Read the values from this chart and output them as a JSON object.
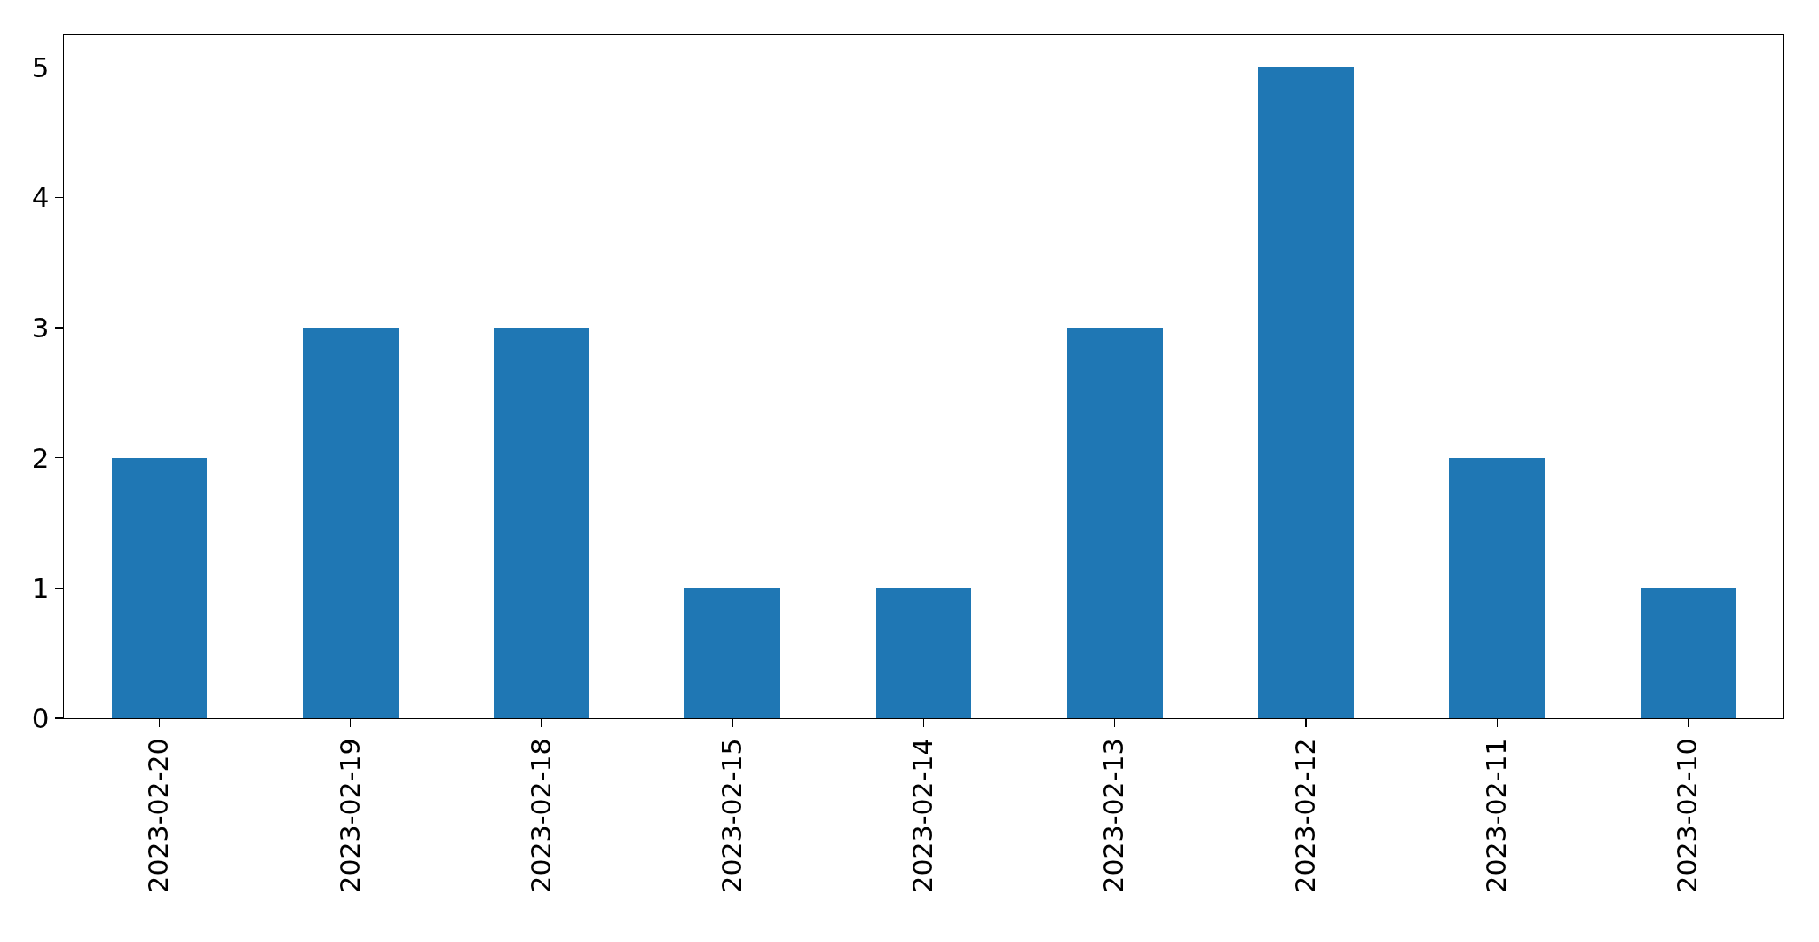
{
  "chart_data": {
    "type": "bar",
    "categories": [
      "2023-02-20",
      "2023-02-19",
      "2023-02-18",
      "2023-02-15",
      "2023-02-14",
      "2023-02-13",
      "2023-02-12",
      "2023-02-11",
      "2023-02-10"
    ],
    "values": [
      2,
      3,
      3,
      1,
      1,
      3,
      5,
      2,
      1
    ],
    "color": "#1f77b4",
    "ylim": [
      0,
      5.25
    ],
    "yticks": [
      0,
      1,
      2,
      3,
      4,
      5
    ],
    "grid": false
  }
}
